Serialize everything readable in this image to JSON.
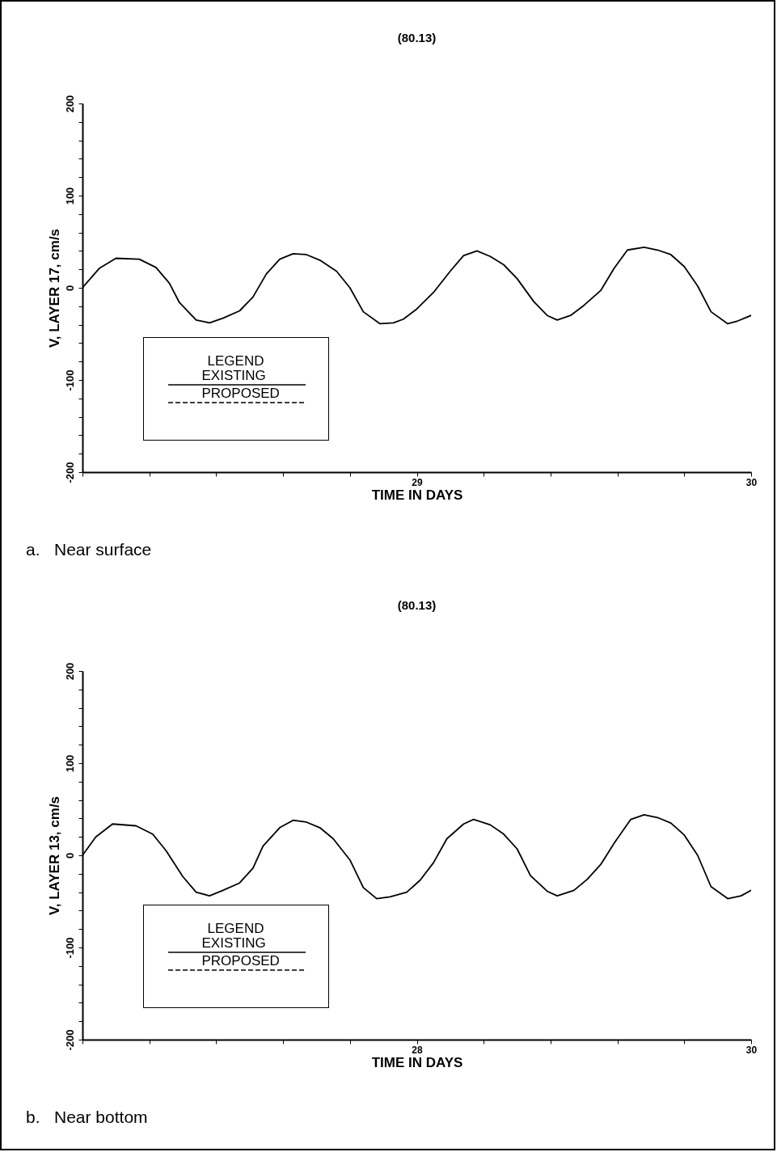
{
  "chart_data": [
    {
      "type": "line",
      "title": "(80.13)",
      "xlabel": "TIME IN DAYS",
      "ylabel": "V, LAYER 17, cm/s",
      "legend_title": "LEGEND",
      "legend": "bottom left",
      "grid": false,
      "marker": "none",
      "annotations": [
        "a.   Near surface"
      ],
      "xlim": [
        28,
        30
      ],
      "ylim": [
        -200,
        200
      ],
      "xticks": [
        {
          "value": 28,
          "label": null
        },
        {
          "value": 28.2,
          "label": null
        },
        {
          "value": 28.4,
          "label": null
        },
        {
          "value": 28.6,
          "label": null
        },
        {
          "value": 28.8,
          "label": null
        },
        29,
        {
          "value": 29.2,
          "label": null
        },
        {
          "value": 29.4,
          "label": null
        },
        {
          "value": 29.6,
          "label": null
        },
        {
          "value": 29.8,
          "label": null
        },
        30
      ],
      "yticks": [
        -200,
        {
          "value": -180,
          "label": null
        },
        {
          "value": -160,
          "label": null
        },
        {
          "value": -140,
          "label": null
        },
        {
          "value": -120,
          "label": null
        },
        -100,
        {
          "value": -80,
          "label": null
        },
        {
          "value": -60,
          "label": null
        },
        {
          "value": -40,
          "label": null
        },
        {
          "value": -20,
          "label": null
        },
        0,
        {
          "value": 20,
          "label": null
        },
        {
          "value": 40,
          "label": null
        },
        {
          "value": 60,
          "label": null
        },
        {
          "value": 80,
          "label": null
        },
        100,
        {
          "value": 120,
          "label": null
        },
        {
          "value": 140,
          "label": null
        },
        {
          "value": 160,
          "label": null
        },
        {
          "value": 180,
          "label": null
        },
        200
      ],
      "x": [
        28.0,
        28.05,
        28.1,
        28.17,
        28.22,
        28.26,
        28.29,
        28.34,
        28.38,
        28.42,
        28.47,
        28.51,
        28.55,
        28.59,
        28.63,
        28.67,
        28.71,
        28.76,
        28.8,
        28.84,
        28.89,
        28.93,
        28.96,
        29.0,
        29.05,
        29.1,
        29.14,
        29.18,
        29.22,
        29.26,
        29.3,
        29.35,
        29.39,
        29.42,
        29.46,
        29.5,
        29.55,
        29.59,
        29.63,
        29.68,
        29.72,
        29.76,
        29.8,
        29.84,
        29.88,
        29.93,
        29.96,
        30.0
      ],
      "series": [
        {
          "name": "EXISTING",
          "color": "#000000",
          "line_style": "solid",
          "values": [
            0,
            21,
            32,
            31,
            22,
            5,
            -16,
            -35,
            -38,
            -33,
            -25,
            -10,
            15,
            31,
            37,
            36,
            30,
            18,
            0,
            -26,
            -39,
            -38,
            -34,
            -23,
            -5,
            18,
            35,
            40,
            34,
            25,
            10,
            -15,
            -30,
            -35,
            -30,
            -19,
            -3,
            21,
            41,
            44,
            41,
            36,
            23,
            2,
            -26,
            -39,
            -36,
            -30
          ]
        },
        {
          "name": "PROPOSED",
          "color": "#000000",
          "line_style": "dashed",
          "values": [
            null,
            null,
            null,
            null,
            null,
            null,
            null,
            null,
            null,
            null,
            null,
            null,
            null,
            null,
            null,
            null,
            null,
            null,
            null,
            null,
            null,
            null,
            null,
            null,
            null,
            null,
            null,
            null,
            null,
            null,
            null,
            null,
            null,
            null,
            null,
            null,
            null,
            null,
            null,
            null,
            null,
            null,
            null,
            null,
            null,
            null,
            null,
            null
          ]
        }
      ]
    },
    {
      "type": "line",
      "title": "(80.13)",
      "xlabel": "TIME IN DAYS",
      "ylabel": "V, LAYER 13, cm/s",
      "legend_title": "LEGEND",
      "legend": "bottom left",
      "grid": false,
      "marker": "none",
      "annotations": [
        "b.   Near bottom"
      ],
      "xlim": [
        26,
        30
      ],
      "ylim": [
        -200,
        200
      ],
      "xticks": [
        {
          "value": 26,
          "label": null
        },
        {
          "value": 26.4,
          "label": null
        },
        {
          "value": 26.8,
          "label": null
        },
        {
          "value": 27.2,
          "label": null
        },
        {
          "value": 27.6,
          "label": null
        },
        28,
        {
          "value": 28.4,
          "label": null
        },
        {
          "value": 28.8,
          "label": null
        },
        {
          "value": 29.2,
          "label": null
        },
        {
          "value": 29.6,
          "label": null
        },
        30
      ],
      "yticks": [
        -200,
        {
          "value": -180,
          "label": null
        },
        {
          "value": -160,
          "label": null
        },
        {
          "value": -140,
          "label": null
        },
        {
          "value": -120,
          "label": null
        },
        -100,
        {
          "value": -80,
          "label": null
        },
        {
          "value": -60,
          "label": null
        },
        {
          "value": -40,
          "label": null
        },
        {
          "value": -20,
          "label": null
        },
        0,
        {
          "value": 20,
          "label": null
        },
        {
          "value": 40,
          "label": null
        },
        {
          "value": 60,
          "label": null
        },
        {
          "value": 80,
          "label": null
        },
        100,
        {
          "value": 120,
          "label": null
        },
        {
          "value": 140,
          "label": null
        },
        {
          "value": 160,
          "label": null
        },
        {
          "value": 180,
          "label": null
        },
        200
      ],
      "x": [
        26.0,
        26.08,
        26.18,
        26.32,
        26.42,
        26.5,
        26.6,
        26.68,
        26.76,
        26.84,
        26.94,
        27.02,
        27.08,
        27.18,
        27.26,
        27.34,
        27.42,
        27.5,
        27.6,
        27.68,
        27.76,
        27.84,
        27.94,
        28.02,
        28.1,
        28.18,
        28.28,
        28.34,
        28.44,
        28.52,
        28.6,
        28.68,
        28.78,
        28.84,
        28.94,
        29.02,
        29.1,
        29.18,
        29.28,
        29.36,
        29.44,
        29.52,
        29.6,
        29.68,
        29.76,
        29.86,
        29.94,
        30.0
      ],
      "series": [
        {
          "name": "EXISTING",
          "color": "#000000",
          "line_style": "solid",
          "values": [
            0,
            20,
            34,
            32,
            23,
            5,
            -23,
            -40,
            -44,
            -38,
            -30,
            -14,
            10,
            30,
            38,
            36,
            30,
            18,
            -5,
            -35,
            -47,
            -45,
            -40,
            -27,
            -8,
            18,
            34,
            39,
            33,
            23,
            7,
            -22,
            -39,
            -44,
            -38,
            -26,
            -10,
            13,
            39,
            44,
            41,
            35,
            22,
            0,
            -34,
            -47,
            -44,
            -38
          ]
        },
        {
          "name": "PROPOSED",
          "color": "#000000",
          "line_style": "dashed",
          "values": [
            null,
            null,
            null,
            null,
            null,
            null,
            null,
            null,
            null,
            null,
            null,
            null,
            null,
            null,
            null,
            null,
            null,
            null,
            null,
            null,
            null,
            null,
            null,
            null,
            null,
            null,
            null,
            null,
            null,
            null,
            null,
            null,
            null,
            null,
            null,
            null,
            null,
            null,
            null,
            null,
            null,
            null,
            null,
            null,
            null,
            null,
            null,
            null
          ]
        }
      ]
    }
  ]
}
